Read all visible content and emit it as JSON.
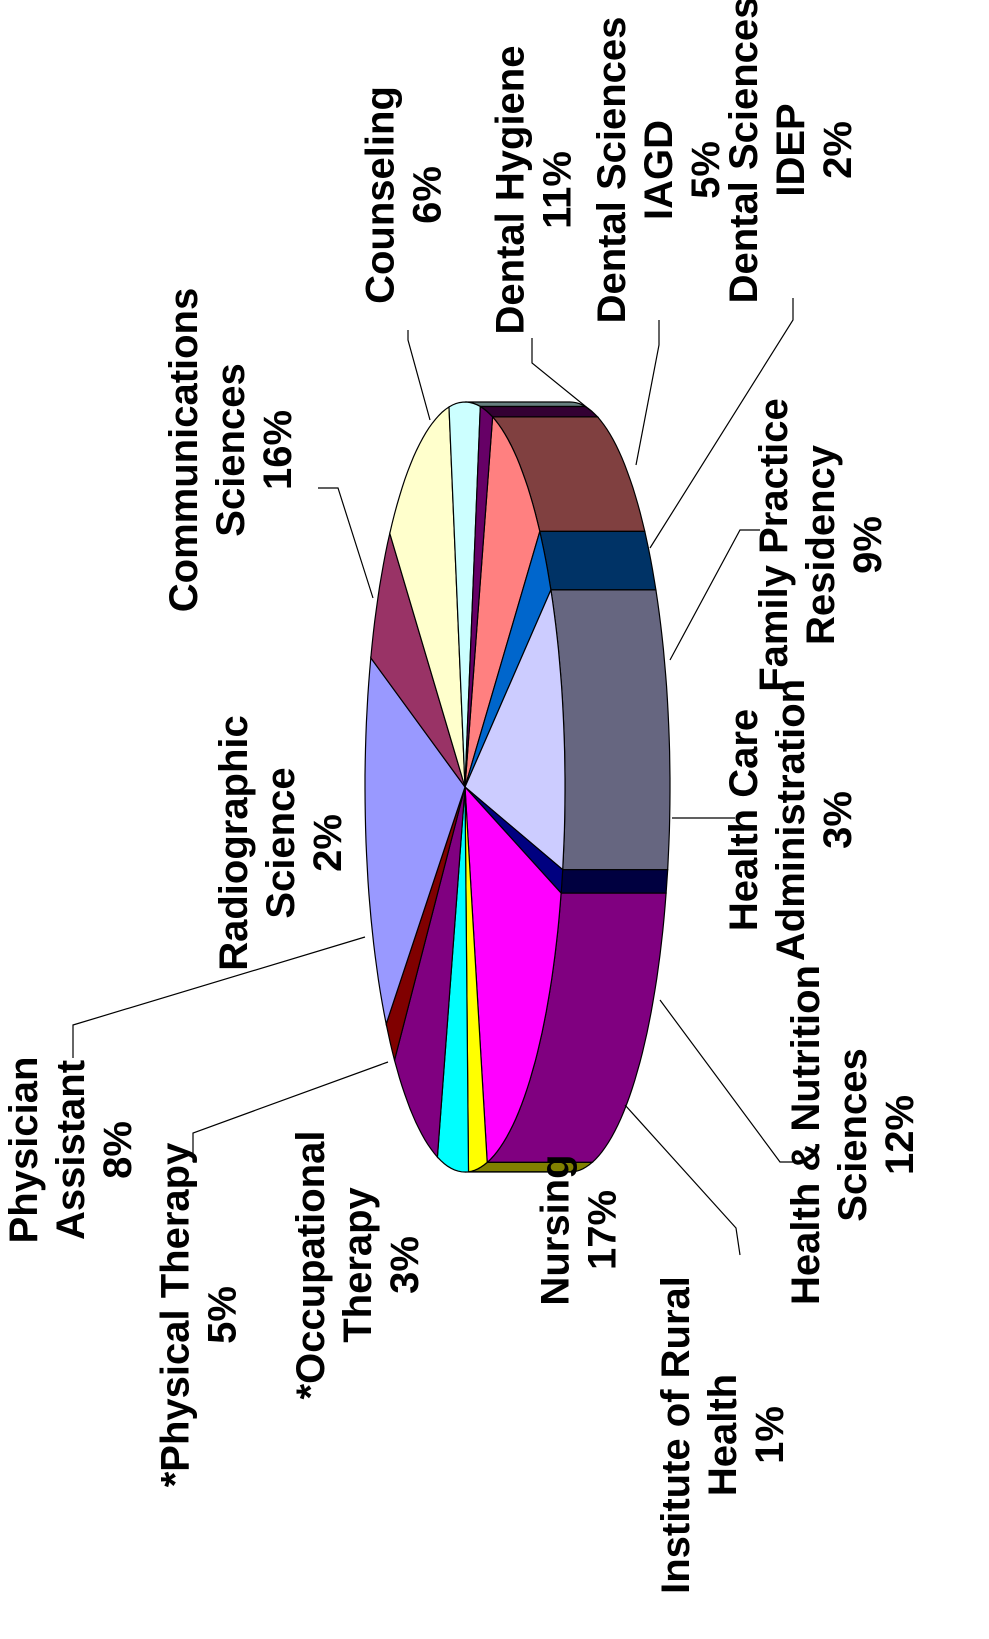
{
  "chart_data": {
    "type": "pie",
    "orientation": "rotated 90° counter-clockwise, 3D",
    "slices": [
      {
        "name": "Family Practice Residency",
        "value": 9,
        "color": "#FF8080",
        "side_color": "#804040",
        "label_lines": [
          "Family Practice",
          "Residency",
          "9%"
        ]
      },
      {
        "name": "Health Care Administration",
        "value": 3,
        "color": "#0066CC",
        "side_color": "#003366",
        "label_lines": [
          "Health Care",
          "Administration",
          "3%"
        ]
      },
      {
        "name": "Health & Nutrition Sciences",
        "value": 12,
        "color": "#CCCCFF",
        "side_color": "#666680",
        "label_lines": [
          "Health & Nutrition",
          "Sciences",
          "12%"
        ]
      },
      {
        "name": "Institute of Rural Health",
        "value": 1,
        "color": "#000080",
        "side_color": "#000040",
        "label_lines": [
          "Institute of Rural",
          "Health",
          "1%"
        ]
      },
      {
        "name": "Nursing",
        "value": 17,
        "color": "#FF00FF",
        "side_color": "#800080",
        "label_lines": [
          "Nursing",
          "17%"
        ]
      },
      {
        "name": "*Occupational Therapy",
        "value": 3,
        "color": "#FFFF00",
        "side_color": "#808000",
        "label_lines": [
          "*Occupational",
          "Therapy",
          "3%"
        ]
      },
      {
        "name": "*Physical Therapy",
        "value": 5,
        "color": "#00FFFF",
        "side_color": "#008080",
        "label_lines": [
          "*Physical Therapy",
          "5%"
        ]
      },
      {
        "name": "Physician Assistant",
        "value": 8,
        "color": "#800080",
        "side_color": "#400040",
        "label_lines": [
          "Physician",
          "Assistant",
          "8%"
        ]
      },
      {
        "name": "Radiographic Science",
        "value": 2,
        "color": "#800000",
        "side_color": "#400000",
        "label_lines": [
          "Radiographic",
          "Science",
          "2%"
        ]
      },
      {
        "name": "Communications Sciences",
        "value": 16,
        "color": "#9999FF",
        "side_color": "#4D4D80",
        "label_lines": [
          "Communications",
          "Sciences",
          "16%"
        ]
      },
      {
        "name": "Counseling",
        "value": 6,
        "color": "#993366",
        "side_color": "#4D1A33",
        "label_lines": [
          "Counseling",
          "6%"
        ]
      },
      {
        "name": "Dental Hygiene",
        "value": 11,
        "color": "#FFFFCC",
        "side_color": "#808066",
        "label_lines": [
          "Dental Hygiene",
          "11%"
        ]
      },
      {
        "name": "Dental Sciences IAGD",
        "value": 5,
        "color": "#CCFFFF",
        "side_color": "#668080",
        "label_lines": [
          "Dental Sciences",
          "IAGD",
          "5%"
        ]
      },
      {
        "name": "Dental Sciences IDEP",
        "value": 2,
        "color": "#660066",
        "side_color": "#330033",
        "label_lines": [
          "Dental Sciences",
          "IDEP",
          "2%"
        ]
      }
    ],
    "title": "",
    "legend": "none (slice labels with leader lines)"
  }
}
